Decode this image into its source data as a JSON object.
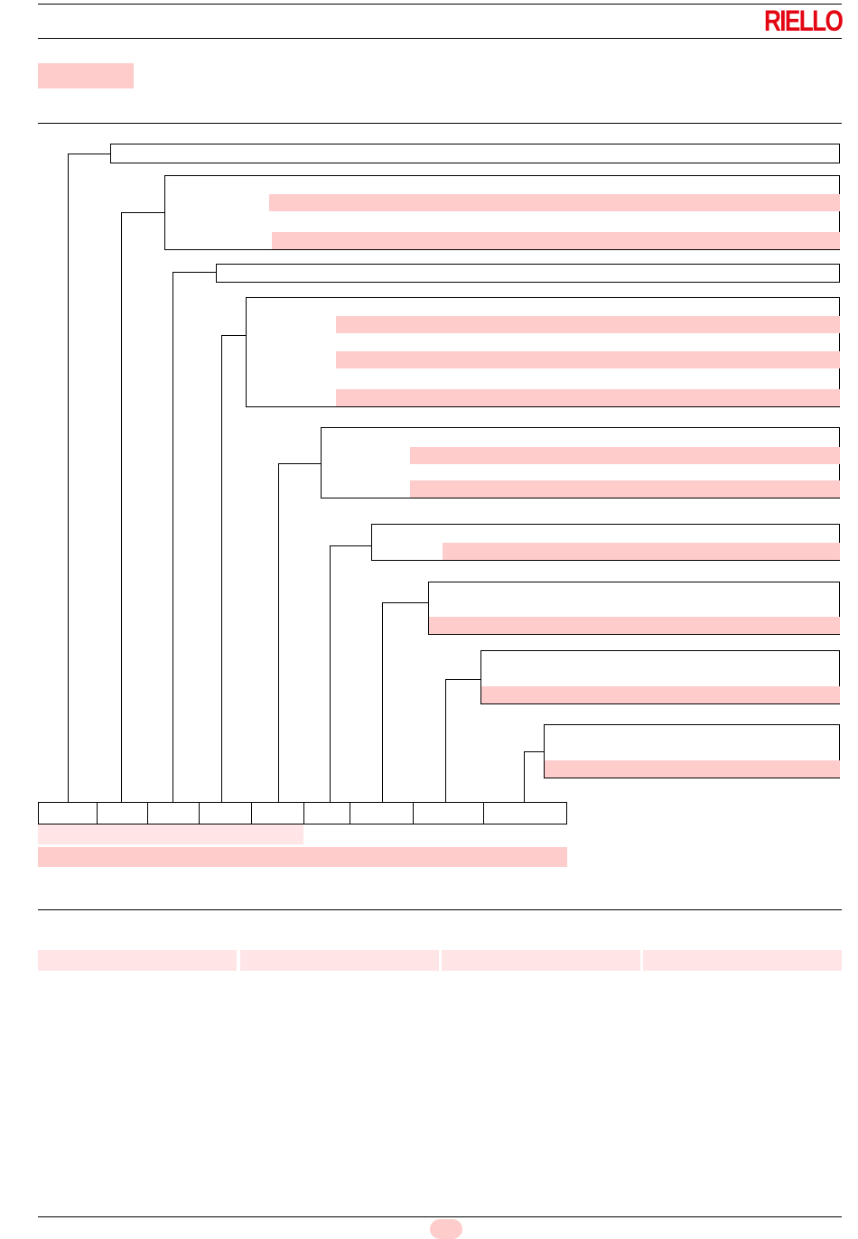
{
  "header": {
    "brand": "RIELLO"
  },
  "colors": {
    "highlight": "#ffcccc",
    "highlight_light": "#ffe5e5",
    "logo": "#e30613",
    "lines": "#000000"
  }
}
